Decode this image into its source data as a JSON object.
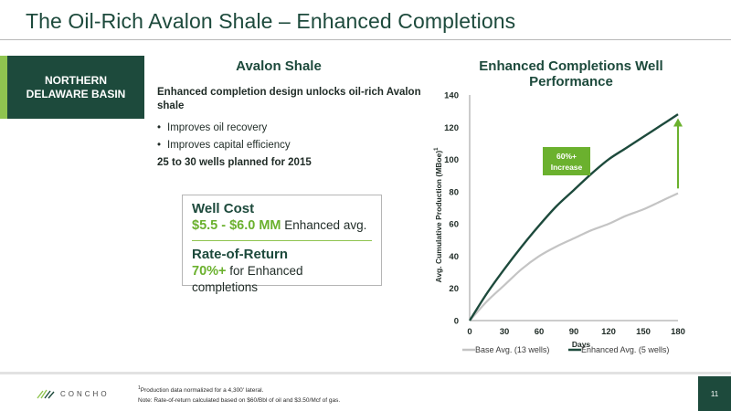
{
  "title": "The Oil-Rich Avalon Shale – Enhanced Completions",
  "region_label": "NORTHERN DELAWARE BASIN",
  "avalon": {
    "heading": "Avalon Shale",
    "lead": "Enhanced completion design unlocks oil-rich Avalon shale",
    "bullets": [
      "Improves oil recovery",
      "Improves capital efficiency"
    ],
    "plan": "25 to 30 wells planned for 2015"
  },
  "cost_box": {
    "well_cost_heading": "Well Cost",
    "well_cost_value": "$5.5 - $6.0 MM",
    "well_cost_suffix": " Enhanced avg.",
    "ror_heading": "Rate-of-Return",
    "ror_value": "70%+",
    "ror_suffix": " for Enhanced completions"
  },
  "chart_heading": "Enhanced Completions Well Performance",
  "chart_data": {
    "type": "line",
    "title": "Enhanced Completions Well Performance",
    "xlabel": "Days",
    "ylabel": "Avg. Cumulative Production (MBoe)",
    "ylabel_sup": "1",
    "xlim": [
      0,
      180
    ],
    "ylim": [
      0,
      140
    ],
    "x_ticks": [
      0,
      30,
      60,
      90,
      120,
      150,
      180
    ],
    "y_ticks": [
      0,
      20,
      40,
      60,
      80,
      100,
      120,
      140
    ],
    "x": [
      0,
      15,
      30,
      45,
      60,
      75,
      90,
      105,
      120,
      135,
      150,
      165,
      180
    ],
    "series": [
      {
        "name": "Base Avg. (13 wells)",
        "color": "#c4c4c4",
        "values": [
          0,
          12,
          22,
          32,
          40,
          46,
          51,
          56,
          60,
          65,
          69,
          74,
          79
        ]
      },
      {
        "name": "Enhanced Avg. (5 wells)",
        "color": "#1d4a3c",
        "values": [
          0,
          17,
          32,
          46,
          59,
          71,
          81,
          91,
          100,
          107,
          114,
          121,
          128
        ]
      }
    ],
    "annotation": {
      "text": [
        "60%+",
        "Increase"
      ],
      "color": "#6bb12e",
      "arrow_x": 180,
      "arrow_from": 82,
      "arrow_to": 125
    },
    "legend_position": "bottom",
    "grid": false
  },
  "footnotes": {
    "line1_sup": "1",
    "line1": "Production data normalized for a 4,300' lateral.",
    "line2": "Note: Rate-of-return calculated based on $60/Bbl of oil and $3.50/Mcf of gas."
  },
  "logo_text": "CONCHO",
  "page_number": "11"
}
